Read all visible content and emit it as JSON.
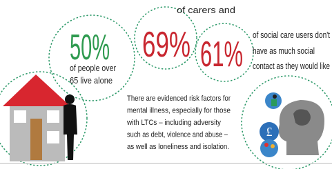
{
  "stats": [
    {
      "figure": "50%",
      "lines": [
        "of people over",
        "65 live alone"
      ]
    },
    {
      "figure": "69%",
      "lines": [
        "of carers and"
      ]
    },
    {
      "figure": "61%",
      "lines": [
        "of social care users don't",
        "have as much social",
        "contact as they would like"
      ]
    }
  ],
  "note": {
    "lines": [
      "There are evidenced risk factors for",
      "mental illness, especially for those",
      "with LTCs – including adversity",
      "such as debt, violence and abuse –",
      "as well as loneliness and isolation."
    ]
  }
}
